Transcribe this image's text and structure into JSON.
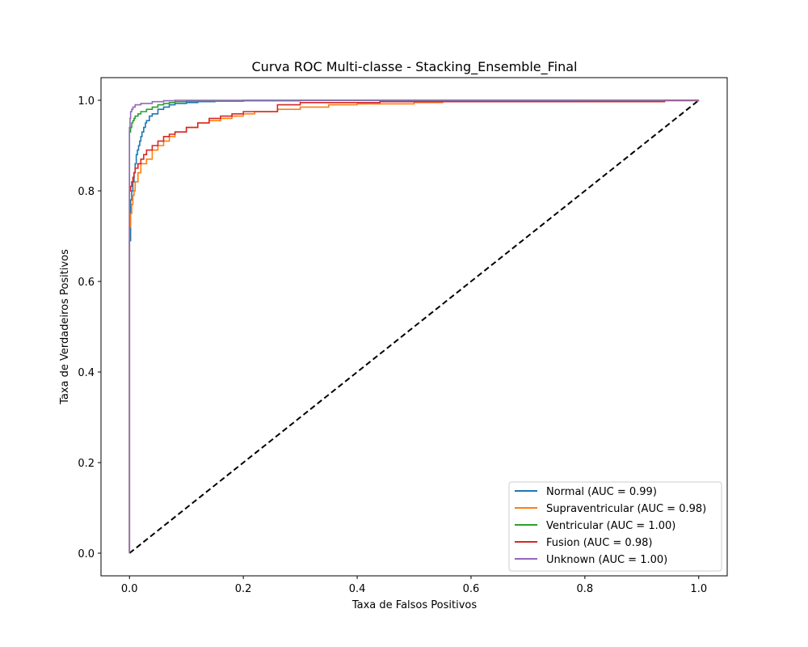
{
  "chart_data": {
    "type": "line",
    "title": "Curva ROC Multi-classe - Stacking_Ensemble_Final",
    "xlabel": "Taxa de Falsos Positivos",
    "ylabel": "Taxa de Verdadeiros Positivos",
    "xlim": [
      -0.05,
      1.05
    ],
    "ylim": [
      -0.05,
      1.05
    ],
    "xticks": [
      "0.0",
      "0.2",
      "0.4",
      "0.6",
      "0.8",
      "1.0"
    ],
    "yticks": [
      "0.0",
      "0.2",
      "0.4",
      "0.6",
      "0.8",
      "1.0"
    ],
    "grid": false,
    "legend_position": "lower-right",
    "series": [
      {
        "name": "Normal (AUC = 0.99)",
        "color": "#1f77b4",
        "x": [
          0,
          0.0,
          0.0,
          0.002,
          0.004,
          0.006,
          0.008,
          0.01,
          0.012,
          0.014,
          0.016,
          0.018,
          0.02,
          0.022,
          0.025,
          0.028,
          0.03,
          0.035,
          0.04,
          0.05,
          0.06,
          0.07,
          0.08,
          0.1,
          0.12,
          0.15,
          0.2,
          0.3,
          0.5,
          1.0
        ],
        "y": [
          0,
          0.46,
          0.69,
          0.78,
          0.8,
          0.82,
          0.84,
          0.86,
          0.88,
          0.89,
          0.9,
          0.91,
          0.92,
          0.93,
          0.94,
          0.95,
          0.955,
          0.965,
          0.97,
          0.98,
          0.985,
          0.99,
          0.993,
          0.995,
          0.997,
          0.998,
          0.999,
          1.0,
          1.0,
          1.0
        ]
      },
      {
        "name": "Supraventricular (AUC = 0.98)",
        "color": "#ff7f0e",
        "x": [
          0,
          0.0,
          0.002,
          0.004,
          0.006,
          0.008,
          0.01,
          0.015,
          0.02,
          0.03,
          0.04,
          0.05,
          0.06,
          0.07,
          0.08,
          0.1,
          0.12,
          0.14,
          0.16,
          0.18,
          0.2,
          0.22,
          0.26,
          0.3,
          0.35,
          0.4,
          0.5,
          0.55,
          0.8,
          0.94,
          1.0
        ],
        "y": [
          0,
          0.72,
          0.75,
          0.77,
          0.79,
          0.8,
          0.82,
          0.84,
          0.86,
          0.87,
          0.89,
          0.9,
          0.91,
          0.92,
          0.93,
          0.94,
          0.95,
          0.955,
          0.96,
          0.965,
          0.97,
          0.975,
          0.98,
          0.985,
          0.99,
          0.992,
          0.995,
          0.997,
          0.998,
          0.999,
          1.0
        ]
      },
      {
        "name": "Ventricular (AUC = 1.00)",
        "color": "#2ca02c",
        "x": [
          0,
          0.0,
          0.002,
          0.004,
          0.006,
          0.008,
          0.01,
          0.015,
          0.02,
          0.03,
          0.04,
          0.05,
          0.06,
          0.07,
          0.08,
          0.1,
          0.15,
          0.2,
          1.0
        ],
        "y": [
          0,
          0.93,
          0.94,
          0.95,
          0.955,
          0.96,
          0.965,
          0.97,
          0.975,
          0.98,
          0.985,
          0.99,
          0.993,
          0.995,
          0.997,
          0.998,
          0.999,
          1.0,
          1.0
        ]
      },
      {
        "name": "Fusion (AUC = 0.98)",
        "color": "#d62728",
        "x": [
          0,
          0.0,
          0.0,
          0.002,
          0.004,
          0.006,
          0.008,
          0.01,
          0.015,
          0.02,
          0.025,
          0.03,
          0.04,
          0.05,
          0.06,
          0.07,
          0.08,
          0.1,
          0.12,
          0.14,
          0.16,
          0.18,
          0.2,
          0.26,
          0.3,
          0.44,
          0.94,
          1.0
        ],
        "y": [
          0,
          0.5,
          0.8,
          0.81,
          0.82,
          0.83,
          0.84,
          0.85,
          0.86,
          0.87,
          0.88,
          0.89,
          0.9,
          0.91,
          0.92,
          0.925,
          0.93,
          0.94,
          0.95,
          0.96,
          0.965,
          0.97,
          0.975,
          0.99,
          0.995,
          0.997,
          1.0,
          1.0
        ]
      },
      {
        "name": "Unknown (AUC = 1.00)",
        "color": "#9467bd",
        "x": [
          0,
          0.0,
          0.001,
          0.002,
          0.004,
          0.006,
          0.01,
          0.02,
          0.04,
          0.06,
          0.08,
          0.2,
          1.0
        ],
        "y": [
          0,
          0.94,
          0.96,
          0.975,
          0.98,
          0.985,
          0.99,
          0.993,
          0.997,
          0.999,
          1.0,
          1.0,
          1.0
        ]
      }
    ],
    "reference_line": {
      "x": [
        0,
        1
      ],
      "y": [
        0,
        1
      ],
      "color": "#000000",
      "style": "dashed"
    }
  }
}
